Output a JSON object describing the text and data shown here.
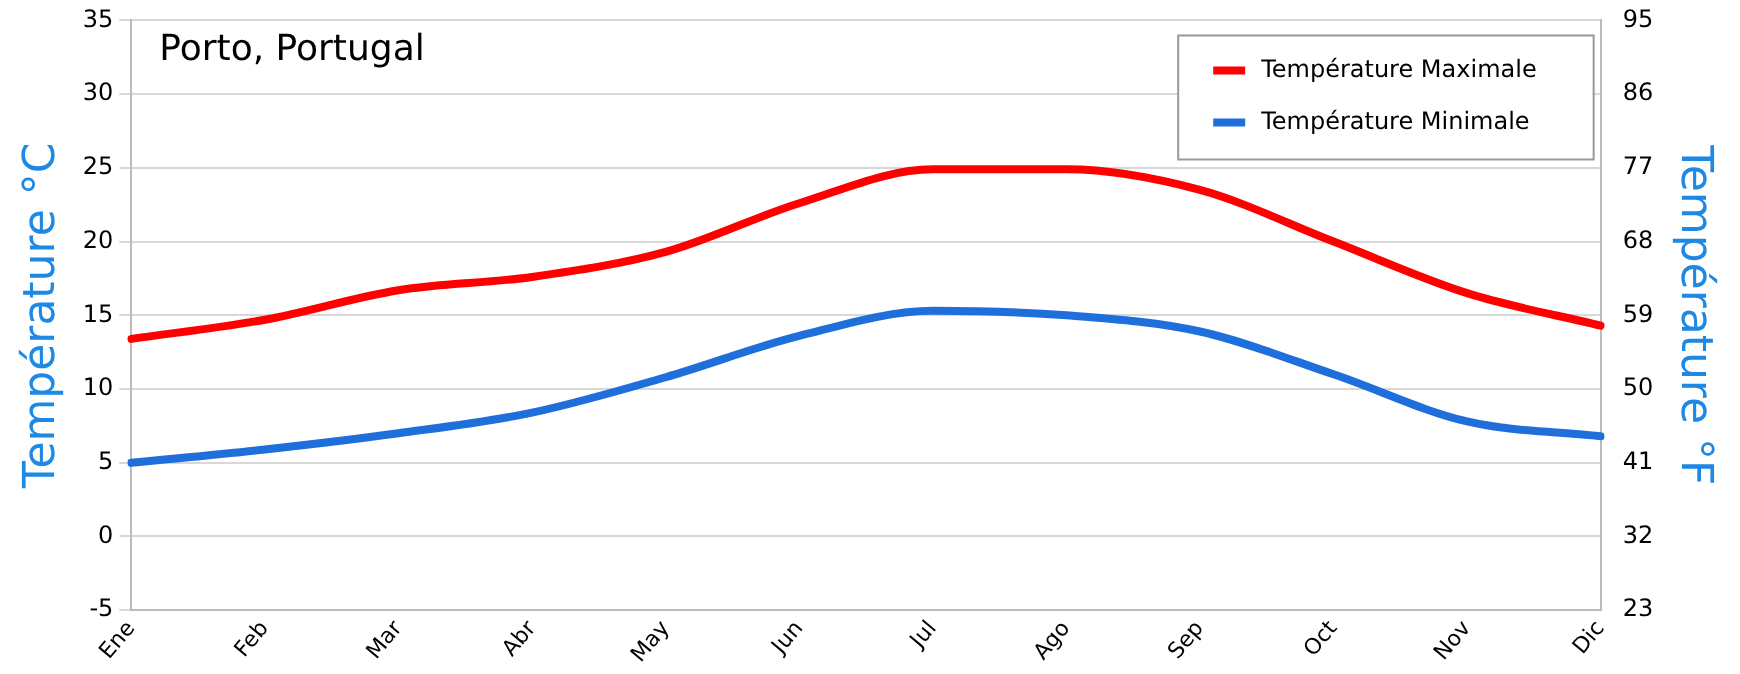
{
  "chart_data": {
    "type": "line",
    "title": "Porto, Portugal",
    "ylabel": "Température °C",
    "y2label": "Température °F",
    "categories": [
      "Ene",
      "Feb",
      "Mar",
      "Abr",
      "May",
      "Jun",
      "Jul",
      "Ago",
      "Sep",
      "Oct",
      "Nov",
      "Dic"
    ],
    "series": [
      {
        "name": "Température Maximale",
        "color": "#ff0000",
        "values": [
          13.4,
          14.7,
          16.7,
          17.6,
          19.3,
          22.6,
          24.9,
          24.9,
          23.5,
          20.0,
          16.5,
          14.3
        ]
      },
      {
        "name": "Température Minimale",
        "color": "#1e6fdc",
        "values": [
          5.0,
          5.9,
          7.0,
          8.4,
          10.8,
          13.6,
          15.3,
          15.0,
          13.9,
          11.0,
          7.8,
          6.8
        ]
      }
    ],
    "ylim": [
      -5,
      35
    ],
    "yticks": [
      -5,
      0,
      5,
      10,
      15,
      20,
      25,
      30,
      35
    ],
    "y2lim": [
      23,
      95
    ],
    "y2ticks": [
      23,
      32,
      41,
      50,
      59,
      68,
      77,
      86,
      95
    ],
    "grid": "y",
    "legend": "top right",
    "marker": "none",
    "line_style": "solid"
  }
}
